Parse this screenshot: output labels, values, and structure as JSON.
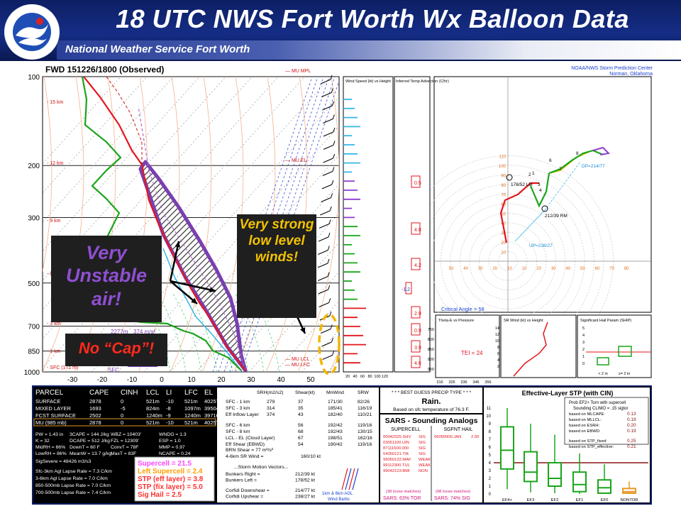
{
  "header": {
    "title": "18 UTC NWS Fort Worth Wx Balloon Data",
    "subtitle": "National Weather Service Fort Worth",
    "logo_text": "NATIONAL WEATHER SERVICE"
  },
  "chart_data": {
    "type": "skew-t sounding",
    "title": "FWD   151226/1800  (Observed)",
    "credit_line1": "NOAA/NWS Storm Prediction Center",
    "credit_line2": "Norman, Oklahoma",
    "pressure_ticks": [
      "100",
      "200",
      "300",
      "500",
      "700",
      "850",
      "1000"
    ],
    "temperature_ticks": [
      "-30",
      "-20",
      "-10",
      "0",
      "10",
      "20",
      "30",
      "40",
      "50"
    ],
    "height_labels": [
      "15 km",
      "12 km",
      "9 km",
      "6 km",
      "3 km",
      "1 km",
      "SFC (171 m)"
    ],
    "parcel_labels": [
      "MU MPL",
      "MU EL",
      "MU LCL",
      "MU LFC"
    ],
    "markers": {
      "sfc": "SFC",
      "fzl_height": "2277m",
      "wetbulb_temp": "374 m/s²"
    },
    "hodograph": {
      "ring_labels": [
        "10",
        "20",
        "30",
        "40",
        "50",
        "60",
        "70",
        "80",
        "90",
        "100",
        "110"
      ],
      "x_labels": [
        "50",
        "40",
        "30",
        "20",
        "10",
        "10",
        "20",
        "30",
        "40",
        "50",
        "60",
        "70",
        "80"
      ],
      "storm_motion_right": "212/39 RM",
      "storm_motion_left": "178/52 LM",
      "deviant_motion": "DP=214/77",
      "upshear": "UP=238/27",
      "critical_angle": "Critical Angle = 58",
      "height_points": [
        "1",
        "2",
        "3",
        "4",
        "6",
        "7",
        "8"
      ]
    },
    "wind_panel_title": "Wind Speed (kt) vs Height",
    "wind_panel_axis": [
      "20",
      "40",
      "60",
      "80",
      "100",
      "120"
    ],
    "advection_title": "Inferred Temp Advection (C/hr)",
    "advection_values": [
      "0.5",
      "4.8",
      "4.2",
      "-1.2",
      "2.9",
      "0.9",
      "3.9",
      "4.6"
    ],
    "theta_title": "Theta-E vs Pressure",
    "theta_axis": [
      "316",
      "326",
      "336",
      "346",
      "356"
    ],
    "theta_pressures": [
      "750",
      "800",
      "850",
      "900",
      "950"
    ],
    "sr_wind_title": "SR Wind (kt) vs Height",
    "sr_ticks": [
      "14",
      "12",
      "10",
      "8",
      "6",
      "4",
      "2"
    ],
    "tei": "TEI = 24",
    "ship_title": "Significant Hail Param (SHIP)",
    "ship_xlabels": [
      "< 2 in",
      "≥= 2 in"
    ],
    "ship_ticks": [
      "5",
      "4",
      "3",
      "2",
      "1",
      "0"
    ]
  },
  "parcels": {
    "headers": [
      "PARCEL",
      "CAPE",
      "CINH",
      "LCL",
      "LI",
      "LFC",
      "EL"
    ],
    "rows": [
      [
        "SURFACE",
        "2878",
        "0",
        "521m",
        "-10",
        "521m",
        "40257'"
      ],
      [
        "MIXED LAYER",
        "1693",
        "-5",
        "824m",
        "-8",
        "1097m",
        "39504'"
      ],
      [
        "FCST SURFACE",
        "2502",
        "0",
        "1240m",
        "-9",
        "1240m",
        "39716'"
      ],
      [
        "MU (985 mb)",
        "2878",
        "0",
        "521m",
        "-10",
        "521m",
        "40257'"
      ]
    ],
    "thermo": [
      [
        "PW = 1.43 in",
        "3CAPE = 144 J/kg",
        "WBZ = 10403'",
        "WNDG = 1.3"
      ],
      [
        "K = 32",
        "DCAPE = 512 J/kg",
        "FZL = 12309'",
        "ESP = 1.0"
      ],
      [
        "MidRH = 66%",
        "DownT = 60 F",
        "ConvT = 78F",
        "MMP = 0.97"
      ],
      [
        "LowRH = 86%",
        "MeanW = 13.7 g/kg",
        "MaxT = 83F",
        "NCAPE = 0.24"
      ]
    ],
    "sigsevere": "SigSevere = 48426 m3/s3",
    "lapse": [
      "Sfc-3km Agl Lapse Rate = 7.3 C/km",
      "3-6km Agl Lapse Rate = 7.0 C/km",
      "850-500mb Lapse Rate = 7.0 C/km",
      "700-500mb Lapse Rate = 7.4 C/km"
    ],
    "supercell": [
      {
        "text": "Supercell = 21.5",
        "color": "#ff44ff"
      },
      {
        "text": "Left Supercell = 2.4",
        "color": "#ffa000"
      },
      {
        "text": "STP (eff layer) = 3.8",
        "color": "#ff3030"
      },
      {
        "text": "STP (fix layer) = 5.0",
        "color": "#ff3030"
      },
      {
        "text": "Sig Hail = 2.5",
        "color": "#ff3030"
      }
    ]
  },
  "kinematics": {
    "headers": [
      "SRH(m2/s2)",
      "Shear(kt)",
      "MnWind",
      "SRW"
    ],
    "rows": [
      [
        "SFC - 1 km",
        "279",
        "37",
        "171/30",
        "82/26"
      ],
      [
        "SFC - 3 km",
        "314",
        "35",
        "185/41",
        "116/19"
      ],
      [
        "Eff Inflow Layer",
        "374",
        "43",
        "182/40",
        "110/21"
      ],
      [
        "SFC - 6 km",
        "56",
        "192/42",
        "119/16"
      ],
      [
        "SFC - 8 km",
        "68",
        "192/43",
        "130/15"
      ],
      [
        "LCL - EL (Cloud Layer)",
        "67",
        "198/51",
        "162/16"
      ],
      [
        "Eff Shear (EBWD)",
        "54",
        "190/42",
        "119/16"
      ]
    ],
    "brn": "BRN Shear = 77 m²/s²",
    "sr_wind": "4-6km SR Wind =",
    "sr_wind_val": "160/10 kt",
    "storm_title": "...Storm Motion Vectors...",
    "storm": [
      [
        "Bunkers Right =",
        "212/39 kt"
      ],
      [
        "Bunkers Left =",
        "178/52 kt"
      ],
      [
        "Corfidi Downshear =",
        "214/77 kt"
      ],
      [
        "Corfidi Upshear =",
        "238/27 kt"
      ]
    ],
    "barbs_label1": "1km & 6km AGL",
    "barbs_label2": "Wind Barbs"
  },
  "precip": {
    "title": "* * * BEST GUESS PRECIP TYPE * * *",
    "type": "Rain.",
    "note": "Based on sfc temperature of 76.3 F."
  },
  "sars": {
    "title": "SARS - Sounding Analogs",
    "col1": "SUPERCELL",
    "col2": "SGFNT HAIL",
    "supercell": [
      [
        "00042325.SHV",
        "SIG"
      ],
      [
        "03051100.UIN",
        "SIG"
      ],
      [
        "87111600.000",
        "SIG"
      ],
      [
        "54050121.TIK",
        "SIG"
      ],
      [
        "99050122.MAF",
        "WEAK"
      ],
      [
        "99112300.TUL",
        "WEAK"
      ],
      [
        "99042123.BMI",
        "NON"
      ]
    ],
    "hail": [
      [
        "06050900.JAN",
        "2.50"
      ]
    ],
    "foot1a": "(38 loose matches)",
    "foot1b": "SARS: 63% TOR",
    "foot2a": "(98 loose matches)",
    "foot2b": "SARS: 74% SIG"
  },
  "stp": {
    "title": "Effective-Layer STP (with CIN)",
    "prob": "Prob EF2+ Torn with supercell",
    "climo": "Sounding CLIMO = .15 sigtor",
    "items": [
      [
        "based on MLCAPE:",
        "0.13"
      ],
      [
        "based on MLLCL:",
        "0.19"
      ],
      [
        "based on ESRH:",
        "0.20"
      ],
      [
        "based on EBWD:",
        "0.19"
      ],
      [
        "based on STP_fixed:",
        "0.25"
      ],
      [
        "based on STP_effective:",
        "0.21"
      ]
    ],
    "yticks": [
      "11",
      "10",
      "9",
      "8",
      "7",
      "6",
      "5",
      "4",
      "3",
      "2",
      "1",
      "0"
    ],
    "categories": [
      "EF4+",
      "EF3",
      "EF2",
      "EF1",
      "EF0",
      "NONTOR"
    ]
  },
  "annotations": {
    "unstable": "Very Unstable air!",
    "winds": "Very strong low level winds!",
    "cap": "No “Cap”!"
  },
  "colors": {
    "header_bg": "#0d1f63",
    "annotation_purple": "#7a3fb0",
    "annotation_yellow": "#f2c200",
    "annotation_red": "#e8231b"
  }
}
